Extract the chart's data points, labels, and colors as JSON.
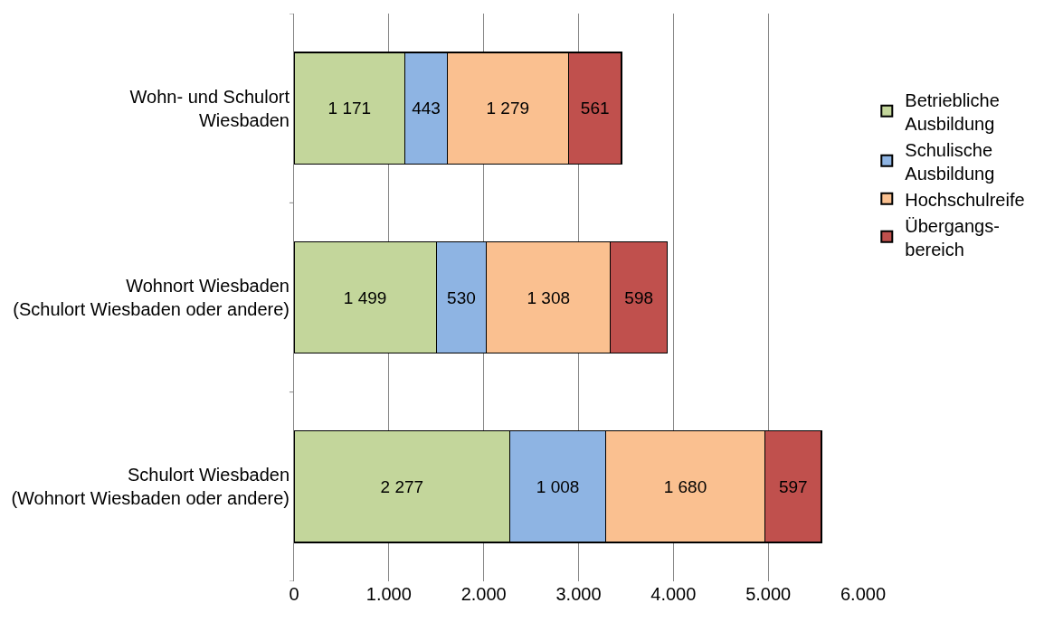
{
  "chart_data": {
    "type": "bar",
    "orientation": "horizontal",
    "stacked": true,
    "categories": [
      "Wohn- und Schulort Wiesbaden",
      "Wohnort Wiesbaden (Schulort Wiesbaden oder andere)",
      "Schulort Wiesbaden (Wohnort Wiesbaden oder andere)"
    ],
    "series": [
      {
        "name": "Betriebliche Ausbildung",
        "color": "#c3d69b",
        "values": [
          1171,
          1499,
          2277
        ],
        "value_labels": [
          "1 171",
          "1 499",
          "2 277"
        ]
      },
      {
        "name": "Schulische Ausbildung",
        "color": "#8eb4e3",
        "values": [
          443,
          530,
          1008
        ],
        "value_labels": [
          "443",
          "530",
          "1 008"
        ]
      },
      {
        "name": "Hochschulreife",
        "color": "#fac090",
        "values": [
          1279,
          1308,
          1680
        ],
        "value_labels": [
          "1 279",
          "1 308",
          "1 680"
        ]
      },
      {
        "name": "Übergangs-bereich",
        "color": "#c0504d",
        "values": [
          561,
          598,
          597
        ],
        "value_labels": [
          "561",
          "598",
          "597"
        ]
      }
    ],
    "xlim": [
      0,
      6000
    ],
    "xticks": [
      0,
      {
        "value": 1000,
        "label": "1.000"
      },
      {
        "value": 2000,
        "label": "2.000"
      },
      {
        "value": 3000,
        "label": "3.000"
      },
      {
        "value": 4000,
        "label": "4.000"
      },
      {
        "value": 5000,
        "label": "5.000"
      },
      {
        "value": 6000,
        "label": "6.000"
      }
    ],
    "grid": "x",
    "legend": "right"
  }
}
